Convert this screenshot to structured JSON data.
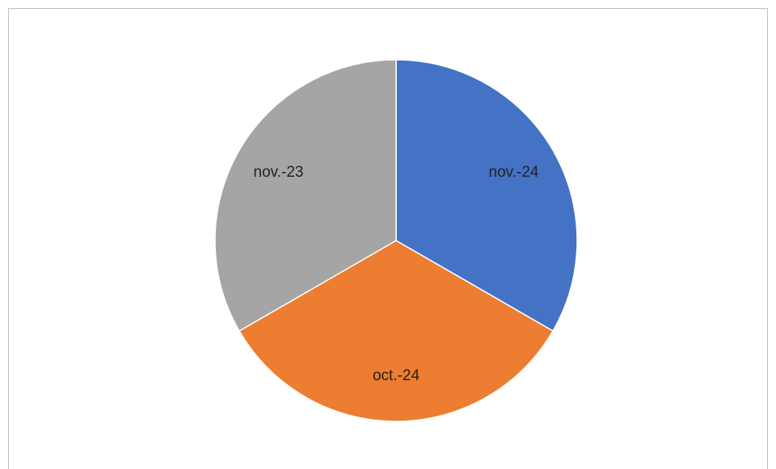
{
  "chart_data": {
    "type": "pie",
    "categories": [
      "nov.-24",
      "oct.-24",
      "nov.-23"
    ],
    "values": [
      33.3,
      33.3,
      33.3
    ],
    "colors": [
      "#4472c4",
      "#ed7d31",
      "#a5a5a5"
    ]
  }
}
